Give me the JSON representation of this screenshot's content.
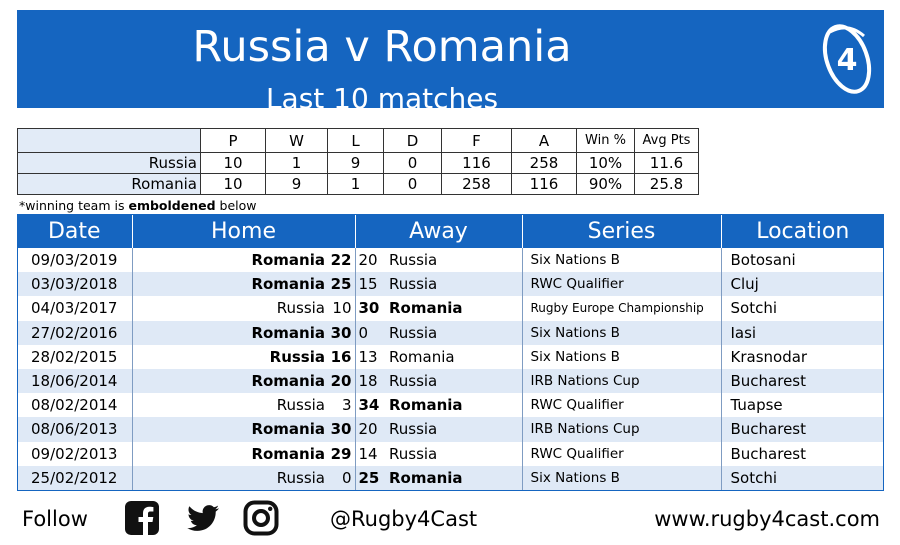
{
  "banner": {
    "title": "Russia v Romania",
    "subtitle": "Last 10 matches",
    "logo_glyph": "4"
  },
  "summary": {
    "headers": [
      "P",
      "W",
      "L",
      "D",
      "F",
      "A",
      "Win %",
      "Avg Pts"
    ],
    "rows": [
      {
        "team": "Russia",
        "values": [
          "10",
          "1",
          "9",
          "0",
          "116",
          "258",
          "10%",
          "11.6"
        ]
      },
      {
        "team": "Romania",
        "values": [
          "10",
          "9",
          "1",
          "0",
          "258",
          "116",
          "90%",
          "25.8"
        ]
      }
    ]
  },
  "note": {
    "prefix": "*winning team is ",
    "bold": "emboldened",
    "suffix": " below"
  },
  "matches": {
    "headers": {
      "date": "Date",
      "home": "Home",
      "away": "Away",
      "series": "Series",
      "location": "Location"
    },
    "rows": [
      {
        "date": "09/03/2019",
        "home": "Romania",
        "home_score": "22",
        "away_score": "20",
        "away": "Russia",
        "series": "Six Nations B",
        "location": "Botosani",
        "winner": "home"
      },
      {
        "date": "03/03/2018",
        "home": "Romania",
        "home_score": "25",
        "away_score": "15",
        "away": "Russia",
        "series": "RWC Qualifier",
        "location": "Cluj",
        "winner": "home"
      },
      {
        "date": "04/03/2017",
        "home": "Russia",
        "home_score": "10",
        "away_score": "30",
        "away": "Romania",
        "series": "Rugby Europe Championship",
        "location": "Sotchi",
        "winner": "away"
      },
      {
        "date": "27/02/2016",
        "home": "Romania",
        "home_score": "30",
        "away_score": "0",
        "away": "Russia",
        "series": "Six Nations B",
        "location": "Iasi",
        "winner": "home"
      },
      {
        "date": "28/02/2015",
        "home": "Russia",
        "home_score": "16",
        "away_score": "13",
        "away": "Romania",
        "series": "Six Nations B",
        "location": "Krasnodar",
        "winner": "home"
      },
      {
        "date": "18/06/2014",
        "home": "Romania",
        "home_score": "20",
        "away_score": "18",
        "away": "Russia",
        "series": "IRB Nations Cup",
        "location": "Bucharest",
        "winner": "home"
      },
      {
        "date": "08/02/2014",
        "home": "Russia",
        "home_score": "3",
        "away_score": "34",
        "away": "Romania",
        "series": "RWC Qualifier",
        "location": "Tuapse",
        "winner": "away"
      },
      {
        "date": "08/06/2013",
        "home": "Romania",
        "home_score": "30",
        "away_score": "20",
        "away": "Russia",
        "series": "IRB Nations Cup",
        "location": "Bucharest",
        "winner": "home"
      },
      {
        "date": "09/02/2013",
        "home": "Romania",
        "home_score": "29",
        "away_score": "14",
        "away": "Russia",
        "series": "RWC Qualifier",
        "location": "Bucharest",
        "winner": "home"
      },
      {
        "date": "25/02/2012",
        "home": "Russia",
        "home_score": "0",
        "away_score": "25",
        "away": "Romania",
        "series": "Six Nations B",
        "location": "Sotchi",
        "winner": "away"
      }
    ]
  },
  "footer": {
    "follow": "Follow",
    "handle": "@Rugby4Cast",
    "website": "www.rugby4cast.com",
    "icons": [
      "facebook-icon",
      "twitter-icon",
      "instagram-icon"
    ]
  },
  "colors": {
    "banner": "#1565c0",
    "row_alt": "#dfe9f6"
  }
}
